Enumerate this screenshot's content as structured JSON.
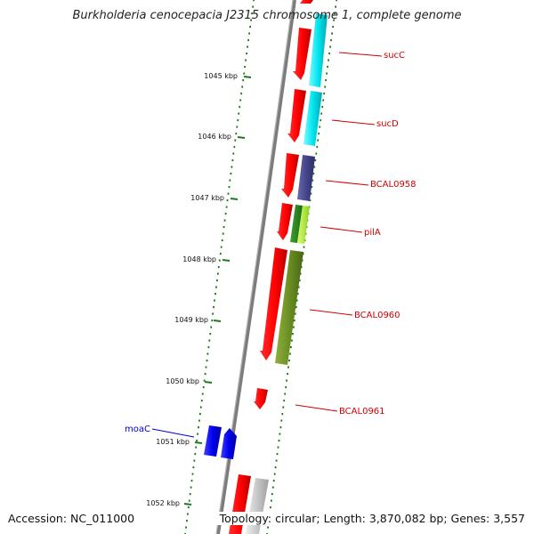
{
  "title": "Burkholderia cenocepacia J2315 chromosome 1, complete genome",
  "footer": {
    "accession": "Accession: NC_011000",
    "summary": "Topology: circular; Length: 3,870,082 bp; Genes: 3,557"
  },
  "colors": {
    "backbone": "#8a8a8a",
    "tick": "#1e7a1e",
    "gene_label": "#d00000",
    "gene_label_rev": "#0000cc",
    "red": "#ff0000",
    "cyan": "#00e5ee",
    "slate": "#4a4a8a",
    "green": "#2e8b22",
    "lime": "#b8f040",
    "olive": "#6b8e23",
    "blue": "#0000ee",
    "grey": "#c8c8c8"
  },
  "kbp_ticks": [
    "1045 kbp",
    "1046 kbp",
    "1047 kbp",
    "1048 kbp",
    "1049 kbp",
    "1050 kbp",
    "1051 kbp",
    "1052 kbp"
  ],
  "gene_labels": [
    {
      "text": "sucC",
      "strand": "forward"
    },
    {
      "text": "sucD",
      "strand": "forward"
    },
    {
      "text": "BCAL0958",
      "strand": "forward"
    },
    {
      "text": "pilA",
      "strand": "forward"
    },
    {
      "text": "BCAL0960",
      "strand": "forward"
    },
    {
      "text": "BCAL0961",
      "strand": "forward"
    },
    {
      "text": "moaC",
      "strand": "reverse"
    }
  ]
}
